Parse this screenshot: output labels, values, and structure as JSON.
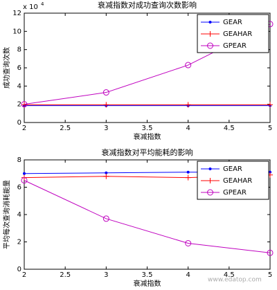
{
  "chart_data": [
    {
      "type": "line",
      "title": "衰减指数对成功查询次数影响",
      "xlabel": "衰减指数",
      "ylabel": "成功查询次数",
      "y_multiplier": "x 10",
      "y_multiplier_exponent": "4",
      "x": [
        2,
        3,
        4,
        5
      ],
      "xlim": [
        2,
        5
      ],
      "xticks": [
        2,
        2.5,
        3,
        3.5,
        4,
        4.5,
        5
      ],
      "ylim": [
        0,
        12
      ],
      "yticks": [
        0,
        2,
        4,
        6,
        8,
        10,
        12
      ],
      "legend": "upper right",
      "series": [
        {
          "name": "GEAR",
          "color": "#0000ff",
          "marker": ".",
          "values": [
            1.85,
            1.85,
            1.85,
            1.85
          ]
        },
        {
          "name": "GEAHAR",
          "color": "#ff0000",
          "marker": "+",
          "values": [
            1.95,
            1.95,
            1.95,
            1.95
          ]
        },
        {
          "name": "GPEAR",
          "color": "#bf00bf",
          "marker": "o",
          "values": [
            2.0,
            3.3,
            6.3,
            10.8
          ]
        }
      ]
    },
    {
      "type": "line",
      "title": "衰减指数对平均能耗的影响",
      "xlabel": "衰减指数",
      "ylabel": "平均每次查询消耗能量",
      "x": [
        2,
        3,
        4,
        5
      ],
      "xlim": [
        2,
        5
      ],
      "xticks": [
        2,
        2.5,
        3,
        3.5,
        4,
        4.5,
        5
      ],
      "ylim": [
        0,
        8
      ],
      "yticks": [
        0,
        2,
        4,
        6,
        8
      ],
      "legend": "upper right",
      "series": [
        {
          "name": "GEAR",
          "color": "#0000ff",
          "marker": ".",
          "values": [
            7.0,
            7.05,
            7.1,
            7.1
          ]
        },
        {
          "name": "GEAHAR",
          "color": "#ff0000",
          "marker": "+",
          "values": [
            6.7,
            6.8,
            6.7,
            6.9
          ]
        },
        {
          "name": "GPEAR",
          "color": "#bf00bf",
          "marker": "o",
          "values": [
            6.5,
            3.7,
            1.9,
            1.2
          ]
        }
      ]
    }
  ],
  "watermark": "www.edatop.com"
}
